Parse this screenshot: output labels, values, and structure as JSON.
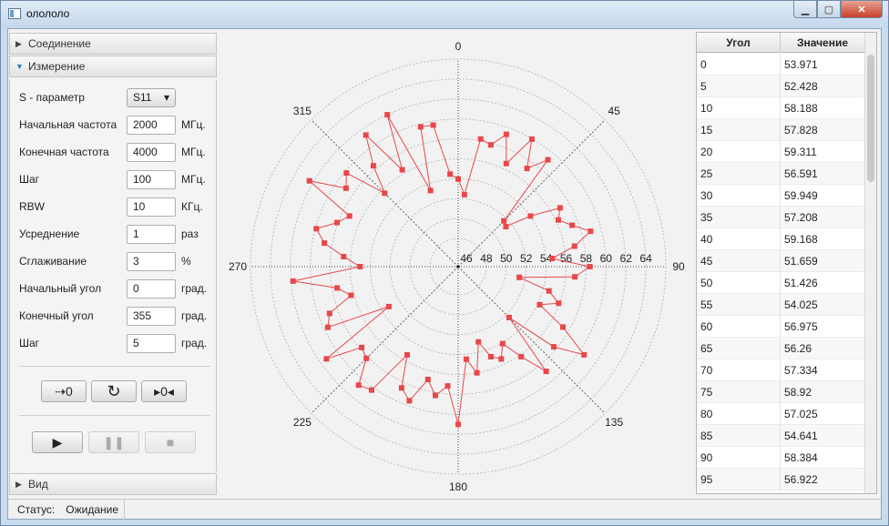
{
  "window": {
    "title": "олололо",
    "minimize_icon": "minimize-icon",
    "maximize_icon": "maximize-icon",
    "close_icon": "close-icon"
  },
  "left": {
    "sections": [
      {
        "label": "Соединение",
        "expanded": false
      },
      {
        "label": "Измерение",
        "expanded": true
      },
      {
        "label": "Вид",
        "expanded": false
      }
    ],
    "fields": [
      {
        "label": "S - параметр",
        "type": "select",
        "value": "S11",
        "unit": ""
      },
      {
        "label": "Начальная частота",
        "type": "input",
        "value": "2000",
        "unit": "МГц."
      },
      {
        "label": "Конечная частота",
        "type": "input",
        "value": "4000",
        "unit": "МГц."
      },
      {
        "label": "Шаг",
        "type": "input",
        "value": "100",
        "unit": "МГц."
      },
      {
        "label": "RBW",
        "type": "input",
        "value": "10",
        "unit": "КГц."
      },
      {
        "label": "Усреднение",
        "type": "input",
        "value": "1",
        "unit": "раз"
      },
      {
        "label": "Сглаживание",
        "type": "input",
        "value": "3",
        "unit": "%"
      },
      {
        "label": "Начальный угол",
        "type": "input",
        "value": "0",
        "unit": "град."
      },
      {
        "label": "Конечный угол",
        "type": "input",
        "value": "355",
        "unit": "град."
      },
      {
        "label": "Шаг",
        "type": "input",
        "value": "5",
        "unit": "град."
      }
    ],
    "buttons": {
      "zero_label": "⇢0",
      "reset_icon": "rotate-reset-icon",
      "center_label": "▸0◂",
      "play_icon": "play-icon",
      "pause_icon": "pause-icon",
      "stop_icon": "stop-icon"
    }
  },
  "chart_data": {
    "type": "polar-line",
    "angle_labels": [
      "0",
      "45",
      "90",
      "135",
      "180",
      "225",
      "270",
      "315"
    ],
    "radial_ticks": [
      "46",
      "48",
      "50",
      "52",
      "54",
      "56",
      "58",
      "60",
      "62",
      "64"
    ],
    "r_range": [
      46,
      66
    ],
    "series_color": "#e8474a",
    "angles": [
      0,
      5,
      10,
      15,
      20,
      25,
      30,
      35,
      40,
      45,
      50,
      55,
      60,
      65,
      70,
      75,
      80,
      85,
      90,
      95,
      100,
      105,
      110,
      115,
      120,
      125,
      130,
      135,
      140,
      145,
      150,
      155,
      160,
      165,
      170,
      175,
      180,
      185,
      190,
      195,
      200,
      205,
      210,
      215,
      220,
      225,
      230,
      235,
      240,
      245,
      250,
      255,
      260,
      265,
      270,
      275,
      280,
      285,
      290,
      295,
      300,
      305,
      310,
      315,
      320,
      325,
      330,
      335,
      340,
      345,
      350,
      355
    ],
    "values": [
      53.971,
      52.428,
      58.188,
      57.828,
      59.311,
      56.591,
      59.949,
      57.208,
      59.168,
      51.659,
      51.426,
      54.025,
      56.975,
      56.26,
      57.334,
      58.92,
      57.025,
      54.641,
      58.384,
      56.922,
      51.4,
      54.6,
      55.9,
      54.2,
      57.3,
      60.6,
      57.7,
      52.4,
      58.9,
      56.2,
      54.1,
      55.4,
      54.8,
      53.0,
      56.0,
      54.5,
      61.0,
      57.2,
      58.3,
      56.9,
      59.5,
      58.6,
      55.4,
      60.3,
      60.7,
      58.2,
      57.8,
      61.3,
      53.2,
      59.6,
      58.9,
      56.3,
      57.5,
      61.8,
      55.0,
      56.7,
      58.8,
      59.9,
      58.1,
      57.2,
      62.4,
      58.9,
      59.8,
      55.6,
      58.4,
      61.3,
      56.4,
      62.0,
      53.3,
      59.7,
      59.6,
      54.5
    ]
  },
  "table": {
    "headers": [
      "Угол",
      "Значение"
    ],
    "rows": [
      [
        "0",
        "53.971"
      ],
      [
        "5",
        "52.428"
      ],
      [
        "10",
        "58.188"
      ],
      [
        "15",
        "57.828"
      ],
      [
        "20",
        "59.311"
      ],
      [
        "25",
        "56.591"
      ],
      [
        "30",
        "59.949"
      ],
      [
        "35",
        "57.208"
      ],
      [
        "40",
        "59.168"
      ],
      [
        "45",
        "51.659"
      ],
      [
        "50",
        "51.426"
      ],
      [
        "55",
        "54.025"
      ],
      [
        "60",
        "56.975"
      ],
      [
        "65",
        "56.26"
      ],
      [
        "70",
        "57.334"
      ],
      [
        "75",
        "58.92"
      ],
      [
        "80",
        "57.025"
      ],
      [
        "85",
        "54.641"
      ],
      [
        "90",
        "58.384"
      ],
      [
        "95",
        "56.922"
      ]
    ]
  },
  "status": {
    "label": "Статус:",
    "value": "Ожидание"
  }
}
